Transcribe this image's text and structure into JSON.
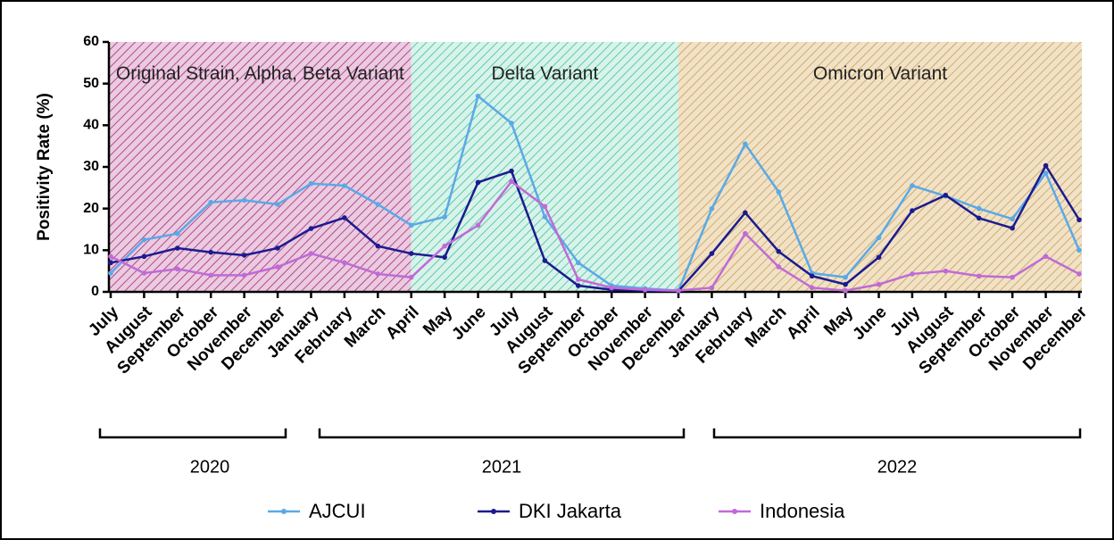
{
  "chart_data": {
    "type": "line",
    "y_label": "Positivity Rate (%)",
    "categories": [
      "July",
      "August",
      "September",
      "October",
      "November",
      "December",
      "January",
      "February",
      "March",
      "April",
      "May",
      "June",
      "July",
      "August",
      "September",
      "October",
      "November",
      "December",
      "January",
      "February",
      "March",
      "April",
      "May",
      "June",
      "July",
      "August",
      "September",
      "October",
      "November",
      "December"
    ],
    "years": [
      "2020",
      "2021",
      "2022"
    ],
    "regions": [
      {
        "label": "Original Strain, Alpha, Beta Variant",
        "color": "#eacbe0",
        "hatch": "#a8287a"
      },
      {
        "label": "Delta Variant",
        "color": "#d8f3ea",
        "hatch": "#3fbf9c"
      },
      {
        "label": "Omicron Variant",
        "color": "#f1e2c6",
        "hatch": "#c79d5c"
      }
    ],
    "series": [
      {
        "name": "AJCUI",
        "color": "#5aa9e6",
        "values": [
          4.5,
          12.5,
          14,
          21.5,
          22,
          21,
          26,
          25.5,
          21,
          16,
          18,
          47,
          40.5,
          18,
          7,
          1.5,
          0.8,
          0.3,
          20,
          35.5,
          24,
          4.5,
          3.5,
          13,
          25.5,
          23,
          20,
          17.5,
          28.5,
          10
        ]
      },
      {
        "name": "DKI Jakarta",
        "color": "#1b1b8f",
        "values": [
          7,
          8.5,
          10.5,
          9.5,
          8.8,
          10.5,
          15.2,
          17.8,
          11,
          9.2,
          8.3,
          26.3,
          29,
          7.5,
          1.5,
          0.5,
          0.3,
          0.2,
          9.2,
          19,
          9.7,
          3.8,
          1.8,
          8.3,
          19.5,
          23.2,
          17.7,
          15.3,
          30.3,
          17.3
        ]
      },
      {
        "name": "Indonesia",
        "color": "#c06ad6",
        "values": [
          8.5,
          4.5,
          5.5,
          4,
          4,
          6,
          9.2,
          7,
          4.3,
          3.5,
          11,
          16,
          26.5,
          20.5,
          3,
          1,
          0.5,
          0.3,
          1,
          14,
          6,
          1,
          0.3,
          1.8,
          4.3,
          5,
          3.8,
          3.5,
          8.5,
          4.3
        ]
      }
    ],
    "ylim": [
      0,
      60
    ],
    "yticks": [
      0,
      10,
      20,
      30,
      40,
      50,
      60
    ]
  }
}
